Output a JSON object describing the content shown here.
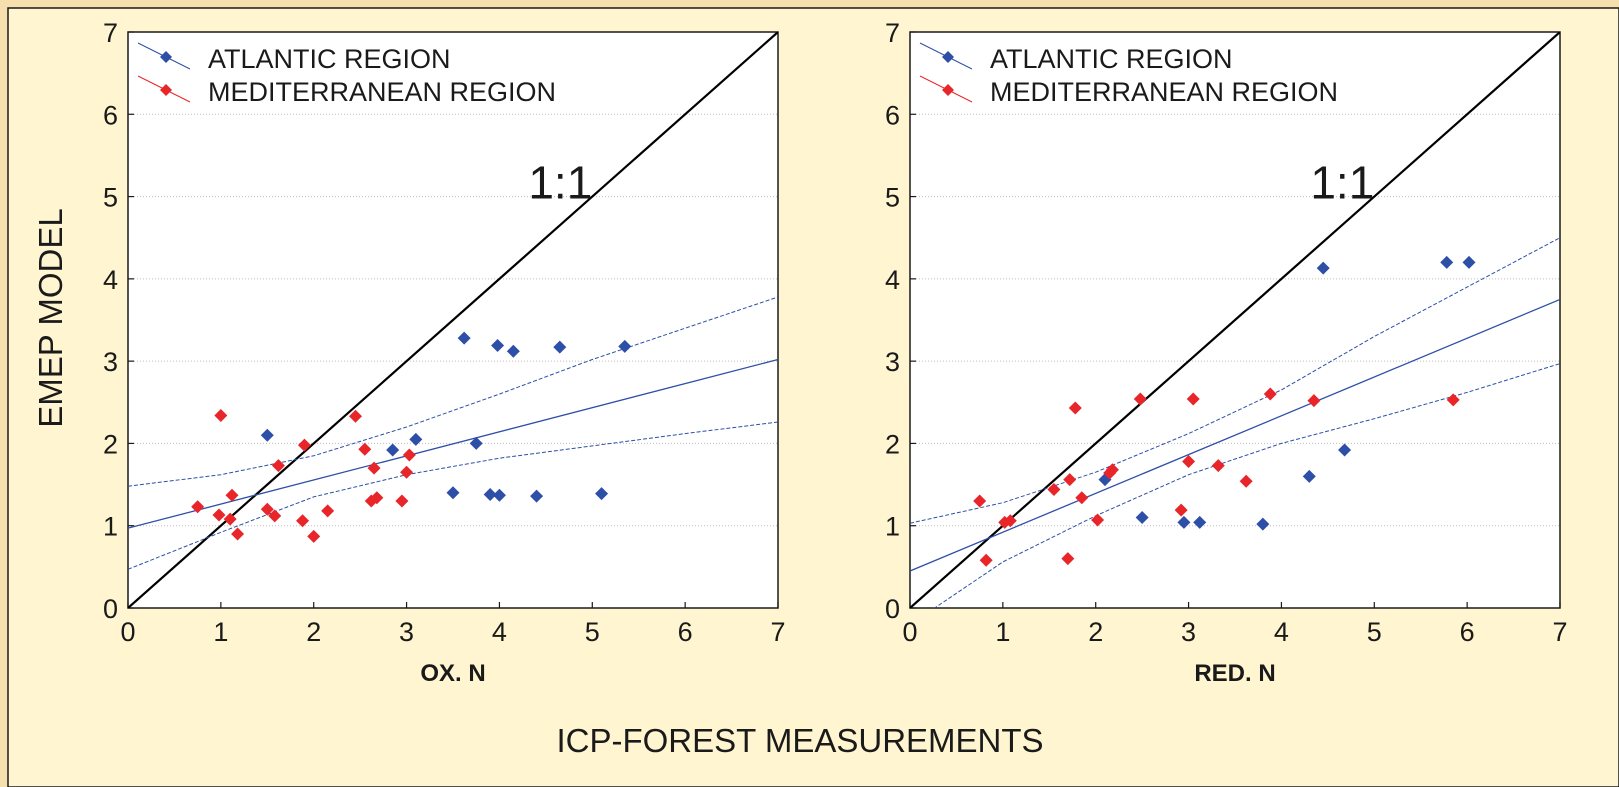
{
  "figure": {
    "y_label": "EMEP MODEL",
    "x_label": "ICP-FOREST MEASUREMENTS"
  },
  "colors": {
    "atlantic": "#2e4fa8",
    "mediterranean": "#e8262a",
    "fit_line": "#2e4fa8",
    "identity_line": "#000000",
    "background": "#fff5d0",
    "page_border": "#f6dfae"
  },
  "chart_data": [
    {
      "type": "scatter",
      "xlabel": "OX. N",
      "ylabel": "EMEP MODEL",
      "xlim": [
        0,
        7
      ],
      "ylim": [
        0,
        7
      ],
      "x_ticks": [
        "0",
        "1",
        "2",
        "3",
        "4",
        "5",
        "6",
        "7"
      ],
      "y_ticks": [
        "0",
        "1",
        "2",
        "3",
        "4",
        "5",
        "6",
        "7"
      ],
      "grid": "horizontal",
      "legend_position": "top-left",
      "annotation": "1:1",
      "identity_line": [
        [
          0,
          0
        ],
        [
          7,
          7
        ]
      ],
      "regression": {
        "line": [
          [
            0,
            0.97
          ],
          [
            7,
            3.02
          ]
        ],
        "ci_upper": [
          [
            0,
            1.48
          ],
          [
            1,
            1.62
          ],
          [
            2,
            1.85
          ],
          [
            3,
            2.2
          ],
          [
            4,
            2.6
          ],
          [
            5,
            3.02
          ],
          [
            6,
            3.4
          ],
          [
            7,
            3.78
          ]
        ],
        "ci_lower": [
          [
            0,
            0.47
          ],
          [
            1,
            0.92
          ],
          [
            2,
            1.35
          ],
          [
            3,
            1.62
          ],
          [
            4,
            1.82
          ],
          [
            5,
            1.97
          ],
          [
            6,
            2.12
          ],
          [
            7,
            2.26
          ]
        ]
      },
      "series": [
        {
          "name": "ATLANTIC REGION",
          "color": "#2e4fa8",
          "points": [
            [
              1.5,
              2.1
            ],
            [
              2.85,
              1.92
            ],
            [
              3.1,
              2.05
            ],
            [
              3.5,
              1.4
            ],
            [
              3.62,
              3.28
            ],
            [
              3.75,
              2.0
            ],
            [
              3.9,
              1.38
            ],
            [
              3.98,
              3.19
            ],
            [
              4.0,
              1.37
            ],
            [
              4.15,
              3.12
            ],
            [
              4.4,
              1.36
            ],
            [
              4.65,
              3.17
            ],
            [
              5.1,
              1.39
            ],
            [
              5.35,
              3.18
            ]
          ]
        },
        {
          "name": "MEDITERRANEAN REGION",
          "color": "#e8262a",
          "points": [
            [
              0.75,
              1.23
            ],
            [
              0.98,
              1.13
            ],
            [
              1.0,
              2.34
            ],
            [
              1.1,
              1.08
            ],
            [
              1.12,
              1.37
            ],
            [
              1.18,
              0.9
            ],
            [
              1.5,
              1.2
            ],
            [
              1.58,
              1.12
            ],
            [
              1.62,
              1.73
            ],
            [
              1.88,
              1.06
            ],
            [
              1.9,
              1.98
            ],
            [
              2.0,
              0.87
            ],
            [
              2.15,
              1.18
            ],
            [
              2.45,
              2.33
            ],
            [
              2.55,
              1.93
            ],
            [
              2.62,
              1.3
            ],
            [
              2.65,
              1.7
            ],
            [
              2.68,
              1.34
            ],
            [
              2.95,
              1.3
            ],
            [
              3.0,
              1.65
            ],
            [
              3.03,
              1.86
            ]
          ]
        }
      ]
    },
    {
      "type": "scatter",
      "xlabel": "RED. N",
      "ylabel": "EMEP MODEL",
      "xlim": [
        0,
        7
      ],
      "ylim": [
        0,
        7
      ],
      "x_ticks": [
        "0",
        "1",
        "2",
        "3",
        "4",
        "5",
        "6",
        "7"
      ],
      "y_ticks": [
        "0",
        "1",
        "2",
        "3",
        "4",
        "5",
        "6",
        "7"
      ],
      "grid": "horizontal",
      "legend_position": "top-left",
      "annotation": "1:1",
      "identity_line": [
        [
          0,
          0
        ],
        [
          7,
          7
        ]
      ],
      "regression": {
        "line": [
          [
            0,
            0.45
          ],
          [
            7,
            3.75
          ]
        ],
        "ci_upper": [
          [
            0,
            1.03
          ],
          [
            1,
            1.28
          ],
          [
            2,
            1.65
          ],
          [
            3,
            2.12
          ],
          [
            4,
            2.65
          ],
          [
            5,
            3.3
          ],
          [
            6,
            3.9
          ],
          [
            7,
            4.5
          ]
        ],
        "ci_lower": [
          [
            0.2,
            -0.05
          ],
          [
            1,
            0.56
          ],
          [
            2,
            1.12
          ],
          [
            3,
            1.62
          ],
          [
            4,
            2.0
          ],
          [
            5,
            2.3
          ],
          [
            6,
            2.62
          ],
          [
            7,
            2.97
          ]
        ]
      },
      "series": [
        {
          "name": "ATLANTIC REGION",
          "color": "#2e4fa8",
          "points": [
            [
              2.1,
              1.56
            ],
            [
              2.5,
              1.1
            ],
            [
              2.95,
              1.04
            ],
            [
              3.12,
              1.04
            ],
            [
              3.8,
              1.02
            ],
            [
              4.3,
              1.6
            ],
            [
              4.45,
              4.13
            ],
            [
              4.68,
              1.92
            ],
            [
              5.78,
              4.2
            ],
            [
              6.02,
              4.2
            ]
          ]
        },
        {
          "name": "MEDITERRANEAN REGION",
          "color": "#e8262a",
          "points": [
            [
              0.75,
              1.3
            ],
            [
              0.82,
              0.58
            ],
            [
              1.02,
              1.04
            ],
            [
              1.08,
              1.06
            ],
            [
              1.55,
              1.44
            ],
            [
              1.7,
              0.6
            ],
            [
              1.72,
              1.56
            ],
            [
              1.78,
              2.43
            ],
            [
              1.85,
              1.34
            ],
            [
              2.02,
              1.07
            ],
            [
              2.15,
              1.64
            ],
            [
              2.18,
              1.68
            ],
            [
              2.48,
              2.54
            ],
            [
              2.92,
              1.19
            ],
            [
              3.0,
              1.78
            ],
            [
              3.05,
              2.54
            ],
            [
              3.32,
              1.73
            ],
            [
              3.62,
              1.54
            ],
            [
              3.88,
              2.6
            ],
            [
              4.35,
              2.52
            ],
            [
              5.85,
              2.53
            ]
          ]
        }
      ]
    }
  ]
}
